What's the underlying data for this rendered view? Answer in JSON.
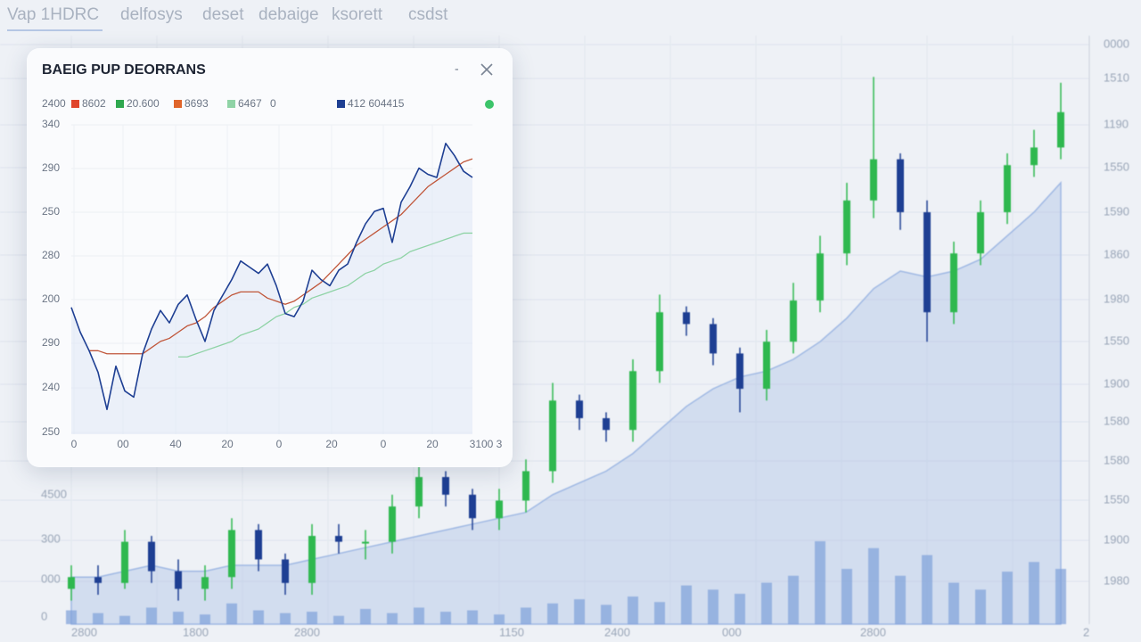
{
  "tabs": [
    "Vap 1HDRC",
    "delfosys",
    "deset",
    "debaige",
    "ksorett",
    "csdst"
  ],
  "background_chart": {
    "type": "candlestick",
    "ylim": [
      0,
      100
    ],
    "up_color": "#2fb84f",
    "down_color": "#1e3f93",
    "area_color": "#9fb8e3",
    "volume_color": "#7d9fd9",
    "volume_lim": [
      0,
      100
    ],
    "right_axis_labels": [
      "0000",
      "1510",
      "1190",
      "1550",
      "1590",
      "1860",
      "1980",
      "1550",
      "1900",
      "1580",
      "1580",
      "1550",
      "1900",
      "1980"
    ],
    "left_axis_labels": [
      "4500",
      "300",
      "000",
      "0"
    ],
    "x_axis_labels": [
      "2800",
      "1800",
      "2800",
      "1150",
      "2400",
      "000",
      "2800",
      "2"
    ],
    "closes": [
      8,
      7,
      14,
      9,
      6,
      8,
      16,
      11,
      7,
      15,
      14,
      14,
      20,
      25,
      22,
      18,
      21,
      26,
      38,
      35,
      33,
      43,
      53,
      51,
      46,
      40,
      48,
      55,
      63,
      72,
      79,
      70,
      53,
      63,
      70,
      78,
      81,
      87
    ],
    "opens": [
      6,
      8,
      7,
      14,
      9,
      6,
      8,
      16,
      11,
      7,
      15,
      14,
      14,
      20,
      25,
      22,
      18,
      21,
      26,
      38,
      35,
      33,
      43,
      53,
      51,
      46,
      40,
      48,
      55,
      63,
      72,
      79,
      70,
      53,
      63,
      70,
      78,
      81
    ],
    "highs": [
      10,
      10,
      16,
      15,
      11,
      10,
      18,
      17,
      12,
      17,
      17,
      16,
      22,
      27,
      26,
      23,
      23,
      28,
      41,
      39,
      36,
      45,
      56,
      54,
      52,
      47,
      50,
      58,
      66,
      75,
      93,
      80,
      72,
      65,
      72,
      80,
      84,
      92
    ],
    "lows": [
      4,
      5,
      6,
      7,
      4,
      4,
      6,
      9,
      5,
      5,
      12,
      11,
      12,
      18,
      20,
      16,
      16,
      19,
      24,
      33,
      31,
      31,
      41,
      49,
      44,
      36,
      38,
      46,
      53,
      61,
      69,
      67,
      48,
      51,
      61,
      68,
      76,
      79
    ],
    "area": [
      8,
      8,
      9,
      10,
      9,
      9,
      10,
      10,
      10,
      11,
      12,
      13,
      14,
      15,
      16,
      17,
      18,
      19,
      22,
      24,
      26,
      29,
      33,
      37,
      40,
      42,
      43,
      45,
      48,
      52,
      57,
      60,
      59,
      60,
      62,
      66,
      70,
      75
    ],
    "volume": [
      10,
      8,
      6,
      12,
      9,
      7,
      15,
      10,
      8,
      9,
      6,
      11,
      8,
      12,
      9,
      10,
      7,
      12,
      15,
      18,
      14,
      20,
      16,
      28,
      25,
      22,
      30,
      35,
      60,
      40,
      55,
      35,
      50,
      30,
      25,
      38,
      45,
      40
    ]
  },
  "popup": {
    "title": "BAEIG PUP DEORRANS",
    "legend_lead": "2400",
    "legend": [
      {
        "label": "8602",
        "color": "#e0452b"
      },
      {
        "label": "20.600",
        "color": "#2fa84f"
      },
      {
        "label": "8693",
        "color": "#e0652b"
      },
      {
        "label": "6467",
        "color": "#8fd3a6"
      },
      {
        "label": "412 604415",
        "color": "#1e3f93"
      }
    ],
    "legend_extra": "0",
    "chart": {
      "type": "line",
      "ylim": [
        0,
        100
      ],
      "y_axis_labels": [
        "340",
        "290",
        "250",
        "280",
        "200",
        "290",
        "240",
        "250"
      ],
      "x_axis_labels": [
        "0",
        "00",
        "40",
        "20",
        "0",
        "20",
        "0",
        "20",
        "3100 3"
      ],
      "series": [
        {
          "color": "#1e3f93",
          "values": [
            41,
            33,
            27,
            20,
            8,
            22,
            14,
            12,
            26,
            34,
            40,
            36,
            42,
            45,
            37,
            30,
            40,
            45,
            50,
            56,
            54,
            52,
            55,
            48,
            39,
            38,
            43,
            53,
            50,
            48,
            53,
            55,
            62,
            68,
            72,
            73,
            62,
            75,
            80,
            86,
            84,
            83,
            94,
            90,
            85,
            83
          ]
        },
        {
          "color": "#c0563a",
          "values": [
            null,
            null,
            27,
            27,
            26,
            26,
            26,
            26,
            26,
            28,
            30,
            31,
            33,
            35,
            36,
            38,
            41,
            43,
            45,
            46,
            46,
            46,
            44,
            43,
            42,
            43,
            45,
            47,
            49,
            52,
            55,
            58,
            61,
            63,
            65,
            67,
            69,
            71,
            74,
            77,
            80,
            82,
            84,
            86,
            88,
            89
          ]
        },
        {
          "color": "#8fd3a6",
          "values": [
            null,
            null,
            null,
            null,
            null,
            null,
            null,
            null,
            null,
            null,
            null,
            null,
            25,
            25,
            26,
            27,
            28,
            29,
            30,
            32,
            33,
            34,
            36,
            38,
            39,
            41,
            42,
            44,
            45,
            46,
            47,
            48,
            50,
            52,
            53,
            55,
            56,
            57,
            59,
            60,
            61,
            62,
            63,
            64,
            65,
            65
          ]
        }
      ]
    }
  }
}
